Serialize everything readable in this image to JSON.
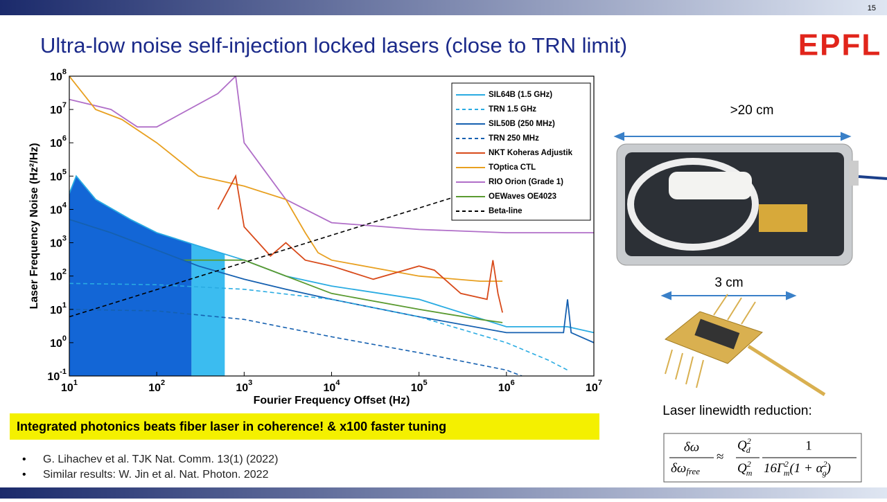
{
  "page_number": "15",
  "title": "Ultra-low noise self-injection locked lasers (close to TRN limit)",
  "logo": "EPFL",
  "chart_data": {
    "type": "line",
    "x_label": "Fourier Frequency Offset (Hz)",
    "y_label": "Laser Frequency Noise (Hz²/Hz)",
    "log_x": true,
    "log_y": true,
    "xlim": [
      10,
      10000000
    ],
    "ylim": [
      0.1,
      100000000
    ],
    "xticks": [
      {
        "value": 10,
        "label": "10",
        "exp": "1"
      },
      {
        "value": 100,
        "label": "10",
        "exp": "2"
      },
      {
        "value": 1000,
        "label": "10",
        "exp": "3"
      },
      {
        "value": 10000,
        "label": "10",
        "exp": "4"
      },
      {
        "value": 100000,
        "label": "10",
        "exp": "5"
      },
      {
        "value": 1000000,
        "label": "10",
        "exp": "6"
      },
      {
        "value": 10000000,
        "label": "10",
        "exp": "7"
      }
    ],
    "yticks": [
      {
        "value": 0.1,
        "label": "10",
        "exp": "-1"
      },
      {
        "value": 1,
        "label": "10",
        "exp": "0"
      },
      {
        "value": 10,
        "label": "10",
        "exp": "1"
      },
      {
        "value": 100,
        "label": "10",
        "exp": "2"
      },
      {
        "value": 1000,
        "label": "10",
        "exp": "3"
      },
      {
        "value": 10000,
        "label": "10",
        "exp": "4"
      },
      {
        "value": 100000,
        "label": "10",
        "exp": "5"
      },
      {
        "value": 1000000,
        "label": "10",
        "exp": "6"
      },
      {
        "value": 10000000,
        "label": "10",
        "exp": "7"
      },
      {
        "value": 100000000,
        "label": "10",
        "exp": "8"
      }
    ],
    "shaded": [
      {
        "from": 10,
        "to": 250,
        "color": "#1366d6"
      },
      {
        "from": 250,
        "to": 600,
        "color": "#3bbcf0"
      }
    ],
    "series": [
      {
        "name": "SIL64B (1.5 GHz)",
        "color": "#29abe2",
        "dash": false,
        "x": [
          10,
          12,
          20,
          50,
          100,
          300,
          1000,
          3000,
          10000,
          100000,
          1000000,
          5000000,
          10000000
        ],
        "values": [
          30000,
          100000,
          20000,
          5000,
          2000,
          800,
          300,
          100,
          50,
          20,
          3,
          3,
          2
        ]
      },
      {
        "name": "TRN 1.5 GHz",
        "color": "#29abe2",
        "dash": true,
        "x": [
          10,
          100,
          1000,
          10000,
          100000,
          1000000,
          3000000,
          5000000
        ],
        "values": [
          60,
          55,
          40,
          20,
          6,
          1,
          0.3,
          0.15
        ]
      },
      {
        "name": "SIL50B (250 MHz)",
        "color": "#1560b0",
        "dash": false,
        "x": [
          10,
          30,
          100,
          300,
          1000,
          3000,
          10000,
          100000,
          1000000,
          4500000,
          5000000,
          5500000,
          10000000
        ],
        "values": [
          5000,
          2000,
          600,
          200,
          80,
          40,
          20,
          6,
          2,
          2,
          20,
          2,
          1
        ]
      },
      {
        "name": "TRN 250 MHz",
        "color": "#1560b0",
        "dash": true,
        "x": [
          10,
          100,
          1000,
          10000,
          100000,
          1000000,
          1500000
        ],
        "values": [
          10,
          9,
          5,
          1.5,
          0.5,
          0.15,
          0.1
        ]
      },
      {
        "name": "NKT Koheras Adjustik",
        "color": "#d84a1a",
        "dash": false,
        "x": [
          500,
          800,
          1000,
          2000,
          3000,
          5000,
          10000,
          30000,
          100000,
          150000,
          300000,
          600000,
          700000,
          800000,
          900000
        ],
        "values": [
          10000,
          100000,
          3000,
          400,
          1000,
          300,
          200,
          80,
          200,
          150,
          30,
          20,
          300,
          30,
          8
        ]
      },
      {
        "name": "TOptica CTL",
        "color": "#e8a020",
        "dash": false,
        "x": [
          10,
          20,
          40,
          100,
          300,
          1000,
          3000,
          5000,
          7000,
          10000,
          100000,
          500000,
          900000
        ],
        "values": [
          100000000,
          10000000,
          5000000,
          1000000,
          100000,
          50000,
          20000,
          2000,
          500,
          300,
          100,
          70,
          70
        ]
      },
      {
        "name": "RIO Orion (Grade 1)",
        "color": "#b06ec8",
        "dash": false,
        "x": [
          10,
          30,
          60,
          100,
          500,
          800,
          1000,
          3000,
          10000,
          100000,
          1000000,
          10000000
        ],
        "values": [
          20000000,
          10000000,
          3000000,
          3000000,
          30000000,
          100000000,
          1000000,
          20000,
          4000,
          2500,
          2000,
          2000
        ]
      },
      {
        "name": "OEWaves OE4023",
        "color": "#5a9a30",
        "dash": false,
        "x": [
          200,
          1000,
          10000,
          100000,
          500000,
          900000
        ],
        "values": [
          300,
          300,
          30,
          10,
          5,
          4
        ]
      },
      {
        "name": "Beta-line",
        "color": "#000000",
        "dash": true,
        "x": [
          10,
          800000
        ],
        "values": [
          6,
          60000
        ]
      }
    ]
  },
  "banner": "Integrated photonics beats fiber laser in coherence! & x100 faster tuning",
  "references": [
    "G. Lihachev et al. TJK Nat. Comm. 13(1) (2022)",
    "Similar results: W. Jin et al. Nat. Photon. 2022"
  ],
  "size_labels": [
    ">20 cm",
    "3 cm"
  ],
  "caption": "Laser linewidth reduction:",
  "formula": {
    "lhs_num": "δω",
    "lhs_den": "δω",
    "lhs_den_sub": "free",
    "approx": "≈",
    "q_num": "Q",
    "q_num_sup": "2",
    "q_num_sub": "d",
    "q_den": "Q",
    "q_den_sup": "2",
    "q_den_sub": "m",
    "r_num": "1",
    "r_den_a": "16Γ",
    "r_den_sup1": "2",
    "r_den_sub1": "m",
    "r_den_b": "(1 + α",
    "r_den_sup2": "2",
    "r_den_sub2": "g",
    "r_den_c": ")"
  }
}
